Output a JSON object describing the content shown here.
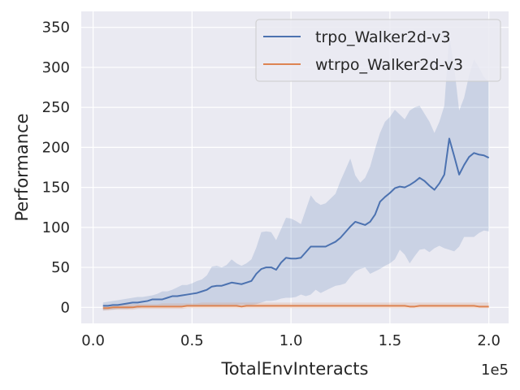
{
  "chart_data": {
    "type": "line",
    "xlabel": "TotalEnvInteracts",
    "ylabel": "Performance",
    "x_offset_label": "1e5",
    "xlim": [
      -0.06,
      2.1
    ],
    "ylim": [
      -20,
      370
    ],
    "x_scale_note": "x tick labels in units of 1e5",
    "xticks": [
      0.0,
      0.5,
      1.0,
      1.5,
      2.0
    ],
    "xtick_labels": [
      "0.0",
      "0.5",
      "1.0",
      "1.5",
      "2.0"
    ],
    "yticks": [
      0,
      50,
      100,
      150,
      200,
      250,
      300,
      350
    ],
    "ytick_labels": [
      "0",
      "50",
      "100",
      "150",
      "200",
      "250",
      "300",
      "350"
    ],
    "grid": true,
    "legend_position": "top-right",
    "background_color": "#eaeaf2",
    "x": [
      0.05,
      0.075,
      0.1,
      0.125,
      0.15,
      0.175,
      0.2,
      0.225,
      0.25,
      0.275,
      0.3,
      0.325,
      0.35,
      0.375,
      0.4,
      0.425,
      0.45,
      0.475,
      0.5,
      0.525,
      0.55,
      0.575,
      0.6,
      0.625,
      0.65,
      0.675,
      0.7,
      0.725,
      0.75,
      0.775,
      0.8,
      0.825,
      0.85,
      0.875,
      0.9,
      0.925,
      0.95,
      0.975,
      1.0,
      1.025,
      1.05,
      1.075,
      1.1,
      1.125,
      1.15,
      1.175,
      1.2,
      1.225,
      1.25,
      1.275,
      1.3,
      1.325,
      1.35,
      1.375,
      1.4,
      1.425,
      1.45,
      1.475,
      1.5,
      1.525,
      1.55,
      1.575,
      1.6,
      1.625,
      1.65,
      1.675,
      1.7,
      1.725,
      1.75,
      1.775,
      1.8,
      1.825,
      1.85,
      1.875,
      1.9,
      1.925,
      1.95,
      1.975,
      2.0
    ],
    "series": [
      {
        "name": "trpo_Walker2d-v3",
        "color": "#4c72b0",
        "band_color": "#4c72b0",
        "band_opacity": 0.2,
        "mean": [
          2,
          2,
          3,
          3,
          4,
          5,
          6,
          6,
          7,
          8,
          10,
          10,
          10,
          12,
          14,
          14,
          15,
          16,
          17,
          18,
          20,
          22,
          26,
          27,
          27,
          29,
          31,
          30,
          29,
          31,
          33,
          42,
          48,
          50,
          50,
          47,
          56,
          62,
          61,
          61,
          62,
          69,
          76,
          76,
          76,
          76,
          79,
          82,
          87,
          94,
          101,
          107,
          105,
          103,
          107,
          116,
          132,
          138,
          143,
          149,
          151,
          150,
          153,
          157,
          162,
          158,
          152,
          147,
          155,
          166,
          211,
          189,
          166,
          178,
          188,
          193,
          191,
          190,
          187
        ],
        "lower": [
          -4,
          -3,
          -3,
          -2,
          -2,
          -2,
          -1,
          -1,
          0,
          0,
          1,
          1,
          1,
          2,
          2,
          2,
          2,
          2,
          2,
          2,
          2,
          2,
          2,
          2,
          3,
          3,
          3,
          3,
          3,
          3,
          3,
          4,
          6,
          8,
          8,
          9,
          11,
          12,
          12,
          13,
          16,
          14,
          16,
          22,
          18,
          21,
          24,
          27,
          28,
          30,
          38,
          45,
          48,
          50,
          42,
          45,
          48,
          52,
          55,
          60,
          72,
          66,
          55,
          64,
          72,
          73,
          69,
          74,
          77,
          74,
          72,
          70,
          76,
          88,
          88,
          88,
          93,
          96,
          95
        ],
        "upper": [
          6,
          7,
          8,
          9,
          10,
          11,
          12,
          13,
          13,
          14,
          15,
          17,
          20,
          20,
          22,
          25,
          28,
          28,
          30,
          33,
          35,
          40,
          51,
          52,
          50,
          53,
          60,
          55,
          52,
          55,
          60,
          75,
          94,
          95,
          94,
          84,
          98,
          112,
          111,
          108,
          104,
          122,
          140,
          132,
          128,
          130,
          136,
          142,
          158,
          172,
          186,
          165,
          156,
          162,
          176,
          198,
          218,
          232,
          238,
          247,
          241,
          235,
          246,
          250,
          252,
          242,
          232,
          218,
          232,
          252,
          340,
          300,
          246,
          262,
          290,
          310,
          300,
          288,
          282
        ]
      },
      {
        "name": "wtrpo_Walker2d-v3",
        "color": "#dd8452",
        "band_color": "#dd8452",
        "band_opacity": 0.2,
        "mean": [
          -1,
          -1,
          0,
          0,
          0,
          0,
          0,
          1,
          1,
          1,
          1,
          1,
          1,
          1,
          1,
          1,
          1,
          2,
          2,
          2,
          2,
          2,
          2,
          2,
          2,
          2,
          2,
          2,
          1,
          2,
          2,
          2,
          2,
          2,
          2,
          2,
          2,
          2,
          2,
          2,
          2,
          2,
          2,
          2,
          2,
          2,
          2,
          2,
          2,
          2,
          2,
          2,
          2,
          2,
          2,
          2,
          2,
          2,
          2,
          2,
          2,
          2,
          1,
          1,
          2,
          2,
          2,
          2,
          2,
          2,
          2,
          2,
          2,
          2,
          2,
          2,
          1,
          1,
          1
        ],
        "lower": [
          -4,
          -4,
          -3,
          -3,
          -3,
          -3,
          -3,
          -2,
          -2,
          -2,
          -2,
          -2,
          -2,
          -2,
          -2,
          -2,
          -2,
          -1,
          -1,
          -1,
          -1,
          -1,
          -1,
          -1,
          -1,
          -1,
          -1,
          -1,
          -1,
          -1,
          -1,
          -1,
          -1,
          -1,
          -1,
          -1,
          -1,
          -1,
          -1,
          -1,
          -1,
          -1,
          -1,
          -1,
          -1,
          -1,
          -1,
          -1,
          -1,
          -1,
          -1,
          -1,
          -1,
          -1,
          -1,
          -1,
          -1,
          -1,
          -1,
          -1,
          -1,
          -1,
          -1,
          -1,
          -1,
          -1,
          -1,
          -1,
          -1,
          -1,
          -1,
          -1,
          -1,
          -1,
          -1,
          -1,
          -1,
          -1,
          -1
        ],
        "upper": [
          3,
          3,
          3,
          4,
          4,
          4,
          4,
          4,
          4,
          4,
          4,
          4,
          5,
          5,
          5,
          5,
          5,
          5,
          5,
          5,
          6,
          6,
          6,
          6,
          6,
          6,
          6,
          6,
          6,
          6,
          6,
          6,
          6,
          6,
          6,
          6,
          6,
          6,
          6,
          6,
          6,
          6,
          6,
          6,
          6,
          6,
          6,
          6,
          6,
          6,
          6,
          6,
          6,
          6,
          6,
          6,
          6,
          6,
          6,
          6,
          6,
          6,
          6,
          6,
          6,
          6,
          6,
          6,
          6,
          6,
          6,
          6,
          6,
          6,
          6,
          6,
          6,
          6,
          6
        ]
      }
    ]
  }
}
